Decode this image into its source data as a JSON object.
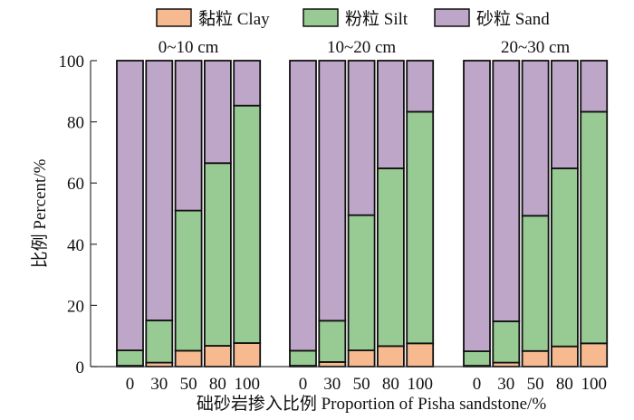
{
  "chart_data": {
    "type": "bar",
    "stacked": true,
    "ylabel": "比例 Percent/%",
    "xlabel": "础砂岩掺入比例 Proportion of Pisha sandstone/%",
    "ylim": [
      0,
      100
    ],
    "yticks": [
      0,
      20,
      40,
      60,
      80,
      100
    ],
    "categories": [
      "0",
      "30",
      "50",
      "80",
      "100"
    ],
    "legend_position": "top",
    "series_meta": [
      {
        "key": "clay",
        "name": "黏粒 Clay",
        "color": "#f7b98f"
      },
      {
        "key": "silt",
        "name": "粉粒 Silt",
        "color": "#98cb93"
      },
      {
        "key": "sand",
        "name": "砂粒 Sand",
        "color": "#bea6c8"
      }
    ],
    "groups": [
      {
        "title": "0~10 cm",
        "clay": [
          0.3,
          1.3,
          5.2,
          6.8,
          7.7
        ],
        "silt": [
          5.0,
          13.8,
          45.8,
          59.7,
          77.6
        ],
        "sand": [
          94.7,
          84.9,
          49.0,
          33.5,
          14.7
        ]
      },
      {
        "title": "10~20 cm",
        "clay": [
          0.3,
          1.5,
          5.3,
          6.7,
          7.6
        ],
        "silt": [
          4.9,
          13.5,
          44.2,
          58.1,
          75.7
        ],
        "sand": [
          94.8,
          85.0,
          50.5,
          35.2,
          16.7
        ]
      },
      {
        "title": "20~30 cm",
        "clay": [
          0.3,
          1.3,
          5.1,
          6.6,
          7.6
        ],
        "silt": [
          4.7,
          13.5,
          44.2,
          58.2,
          75.7
        ],
        "sand": [
          95.0,
          85.2,
          50.7,
          35.2,
          16.7
        ]
      }
    ]
  }
}
